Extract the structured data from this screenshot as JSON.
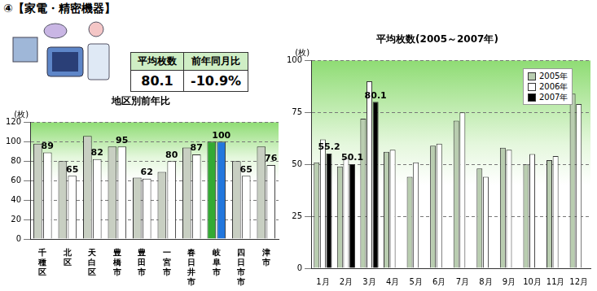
{
  "header": {
    "title": "④【家電・精密機器】"
  },
  "summary": {
    "headers": [
      "平均枚数",
      "前年同月比"
    ],
    "values": [
      "80.1",
      "-10.9%"
    ]
  },
  "chart_data": [
    {
      "type": "bar",
      "title": "地区別前年比",
      "ylabel": "(枚)",
      "categories": [
        "千種区",
        "北区",
        "天白区",
        "豊橋市",
        "豊田市",
        "一宮市",
        "春日井市",
        "岐阜市",
        "四日市市",
        "津市"
      ],
      "series": [
        {
          "colors": [
            "#c8cfc2",
            "#c8cfc2",
            "#c8cfc2",
            "#c8cfc2",
            "#c8cfc2",
            "#c8cfc2",
            "#c8cfc2",
            "#33aa33",
            "#c8cfc2",
            "#c8cfc2"
          ],
          "values": [
            98,
            80,
            106,
            95,
            63,
            69,
            94,
            100,
            80,
            95
          ]
        },
        {
          "colors": [
            "#ffffff",
            "#ffffff",
            "#ffffff",
            "#ffffff",
            "#ffffff",
            "#ffffff",
            "#ffffff",
            "#2277dd",
            "#ffffff",
            "#ffffff"
          ],
          "values": [
            89,
            65,
            82,
            95,
            62,
            80,
            87,
            100,
            65,
            76
          ],
          "data_labels": true
        }
      ],
      "ylim": [
        0,
        120
      ],
      "yticks": [
        0,
        20,
        40,
        60,
        80,
        100,
        120
      ],
      "grid": true
    },
    {
      "type": "bar",
      "title": "平均枚数(2005～2007年)",
      "ylabel": "(枚)",
      "categories": [
        "1月",
        "2月",
        "3月",
        "4月",
        "5月",
        "6月",
        "7月",
        "8月",
        "9月",
        "10月",
        "11月",
        "12月"
      ],
      "series": [
        {
          "name": "2005年",
          "color": "#b9cdb0",
          "values": [
            51,
            49,
            72,
            56,
            44,
            59,
            71,
            48,
            58,
            50,
            52,
            84
          ]
        },
        {
          "name": "2006年",
          "color": "#ffffff",
          "values": [
            62,
            53,
            90,
            57,
            51,
            60,
            75,
            44,
            57,
            55,
            54,
            79
          ]
        },
        {
          "name": "2007年",
          "color": "#000000",
          "values": [
            55.2,
            50.1,
            80.1,
            null,
            null,
            null,
            null,
            null,
            null,
            null,
            null,
            null
          ],
          "data_labels": true
        }
      ],
      "ylim": [
        0,
        100
      ],
      "yticks": [
        0,
        25,
        50,
        75,
        100
      ],
      "grid": true,
      "legend": "upper right"
    }
  ]
}
